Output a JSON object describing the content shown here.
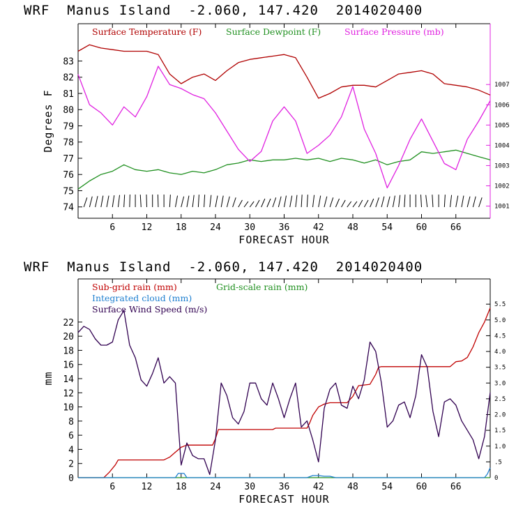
{
  "top_title": "WRF  Manus Island  -2.060, 147.420  2014020400",
  "bottom_title": "WRF  Manus Island  -2.060, 147.420  2014020400",
  "colors": {
    "temperature": "#b00000",
    "dewpoint": "#209020",
    "pressure": "#e020e0",
    "subgrid_rain": "#c00000",
    "gridscale_rain": "#209020",
    "cloud": "#2080d0",
    "wind_speed": "#300050"
  },
  "chart_data": [
    {
      "type": "line",
      "title": "WRF  Manus Island  -2.060, 147.420  2014020400",
      "xlabel": "FORECAST HOUR",
      "ylabel": "Degrees F",
      "y2label": "",
      "xlim": [
        0,
        72
      ],
      "ylim": [
        73.3,
        85.3
      ],
      "y2lim": [
        1000.4,
        1010.0
      ],
      "xticks": [
        6,
        12,
        18,
        24,
        30,
        36,
        42,
        48,
        54,
        60,
        66
      ],
      "yticks": [
        74,
        75,
        76,
        77,
        78,
        79,
        80,
        81,
        82,
        83
      ],
      "y2ticks": [
        1001,
        1002,
        1003,
        1004,
        1005,
        1006,
        1007
      ],
      "legend": [
        "Surface Temperature (F)",
        "Surface Dewpoint (F)",
        "Surface Pressure (mb)"
      ],
      "x": [
        0,
        2,
        4,
        6,
        8,
        10,
        12,
        14,
        16,
        18,
        20,
        22,
        24,
        26,
        28,
        30,
        32,
        34,
        36,
        38,
        40,
        42,
        44,
        46,
        48,
        50,
        52,
        54,
        56,
        58,
        60,
        62,
        64,
        66,
        68,
        70,
        72
      ],
      "series": [
        {
          "name": "Surface Temperature (F)",
          "axis": "left",
          "values": [
            83.6,
            84.0,
            83.8,
            83.7,
            83.6,
            83.6,
            83.6,
            83.4,
            82.2,
            81.6,
            82.0,
            82.2,
            81.8,
            82.4,
            82.9,
            83.1,
            83.2,
            83.3,
            83.4,
            83.2,
            82.0,
            80.7,
            81.0,
            81.4,
            81.5,
            81.5,
            81.4,
            81.8,
            82.2,
            82.3,
            82.4,
            82.2,
            81.6,
            81.5,
            81.4,
            81.2,
            80.9
          ]
        },
        {
          "name": "Surface Dewpoint (F)",
          "axis": "left",
          "values": [
            75.1,
            75.6,
            76.0,
            76.2,
            76.6,
            76.3,
            76.2,
            76.3,
            76.1,
            76.0,
            76.2,
            76.1,
            76.3,
            76.6,
            76.7,
            76.9,
            76.8,
            76.9,
            76.9,
            77.0,
            76.9,
            77.0,
            76.8,
            77.0,
            76.9,
            76.7,
            76.9,
            76.6,
            76.8,
            76.9,
            77.4,
            77.3,
            77.4,
            77.5,
            77.3,
            77.1,
            76.9
          ]
        },
        {
          "name": "Surface Pressure (mb)",
          "axis": "right",
          "values": [
            1007.5,
            1006.0,
            1005.6,
            1005.0,
            1005.9,
            1005.4,
            1006.4,
            1007.9,
            1007.0,
            1006.8,
            1006.5,
            1006.3,
            1005.6,
            1004.7,
            1003.8,
            1003.2,
            1003.7,
            1005.2,
            1005.9,
            1005.2,
            1003.6,
            1004.0,
            1004.5,
            1005.4,
            1006.9,
            1004.8,
            1003.6,
            1001.9,
            1003.0,
            1004.3,
            1005.3,
            1004.2,
            1003.1,
            1002.8,
            1004.3,
            1005.2,
            1006.2
          ]
        }
      ]
    },
    {
      "type": "line",
      "title": "WRF  Manus Island  -2.060, 147.420  2014020400",
      "xlabel": "FORECAST HOUR",
      "ylabel": "mm",
      "y2label": "",
      "xlim": [
        0,
        72
      ],
      "ylim": [
        0,
        28.1
      ],
      "y2lim": [
        0,
        6.3
      ],
      "xticks": [
        6,
        12,
        18,
        24,
        30,
        36,
        42,
        48,
        54,
        60,
        66
      ],
      "yticks": [
        0,
        2,
        4,
        6,
        8,
        10,
        12,
        14,
        16,
        18,
        20,
        22
      ],
      "y2ticks": [
        "0",
        ".5",
        "1.0",
        "1.5",
        "2.0",
        "2.5",
        "3.0",
        "3.5",
        "4.0",
        "4.5",
        "5.0",
        "5.5"
      ],
      "legend": [
        "Sub-grid rain (mm)",
        "Grid-scale rain (mm)",
        "Integrated cloud (mm)",
        "Surface Wind Speed (m/s)"
      ],
      "series": [
        {
          "name": "Sub-grid rain (mm)",
          "axis": "left",
          "x": [
            0,
            4.5,
            5.5,
            6.5,
            7,
            15,
            16,
            17,
            18,
            19,
            23.5,
            24,
            24.5,
            34,
            34.5,
            40,
            40.5,
            41,
            42,
            43,
            44,
            47,
            48,
            49,
            50,
            51,
            52,
            52.5,
            53,
            65,
            66,
            67,
            68,
            69,
            70,
            71,
            72
          ],
          "values": [
            0,
            0,
            0.8,
            1.8,
            2.5,
            2.5,
            2.9,
            3.6,
            4.3,
            4.6,
            4.6,
            5.5,
            6.8,
            6.8,
            7.0,
            7.0,
            7.8,
            8.8,
            10.0,
            10.4,
            10.6,
            10.6,
            11.5,
            13.0,
            13.1,
            13.2,
            14.6,
            15.6,
            15.7,
            15.7,
            16.4,
            16.5,
            17.0,
            18.5,
            20.5,
            22.0,
            24.0
          ]
        },
        {
          "name": "Grid-scale rain (mm)",
          "axis": "left",
          "x": [
            0,
            72
          ],
          "values": [
            0,
            0
          ]
        },
        {
          "name": "Integrated cloud (mm)",
          "axis": "left",
          "x": [
            0,
            17,
            17.5,
            18.5,
            19,
            40,
            41,
            42,
            43,
            44,
            45,
            71,
            71.5,
            72
          ],
          "values": [
            0,
            0,
            0.6,
            0.6,
            0,
            0,
            0.3,
            0.3,
            0.2,
            0.2,
            0,
            0,
            0.5,
            1.4
          ]
        },
        {
          "name": "Surface Wind Speed (m/s)",
          "axis": "right",
          "x": [
            0,
            1,
            2,
            3,
            4,
            5,
            6,
            7,
            8,
            9,
            10,
            11,
            12,
            13,
            14,
            15,
            16,
            17,
            18,
            19,
            20,
            21,
            22,
            23,
            24,
            25,
            26,
            27,
            28,
            29,
            30,
            31,
            32,
            33,
            34,
            35,
            36,
            37,
            38,
            39,
            40,
            41,
            42,
            43,
            44,
            45,
            46,
            47,
            48,
            49,
            50,
            51,
            52,
            53,
            54,
            55,
            56,
            57,
            58,
            59,
            60,
            61,
            62,
            63,
            64,
            65,
            66,
            67,
            68,
            69,
            70,
            71,
            72
          ],
          "values": [
            4.6,
            4.8,
            4.7,
            4.4,
            4.2,
            4.2,
            4.3,
            5.0,
            5.3,
            4.2,
            3.8,
            3.1,
            2.9,
            3.3,
            3.8,
            3.0,
            3.2,
            3.0,
            0.4,
            1.1,
            0.7,
            0.6,
            0.6,
            0.1,
            1.2,
            3.0,
            2.6,
            1.9,
            1.7,
            2.1,
            3.0,
            3.0,
            2.5,
            2.3,
            3.0,
            2.5,
            1.9,
            2.5,
            3.0,
            1.6,
            1.8,
            1.2,
            0.5,
            2.2,
            2.8,
            3.0,
            2.3,
            2.2,
            2.9,
            2.5,
            3.1,
            4.3,
            4.0,
            3.0,
            1.6,
            1.8,
            2.3,
            2.4,
            1.9,
            2.6,
            3.9,
            3.5,
            2.1,
            1.3,
            2.4,
            2.5,
            2.3,
            1.8,
            1.5,
            1.2,
            0.6,
            1.3,
            2.7
          ]
        }
      ]
    }
  ]
}
